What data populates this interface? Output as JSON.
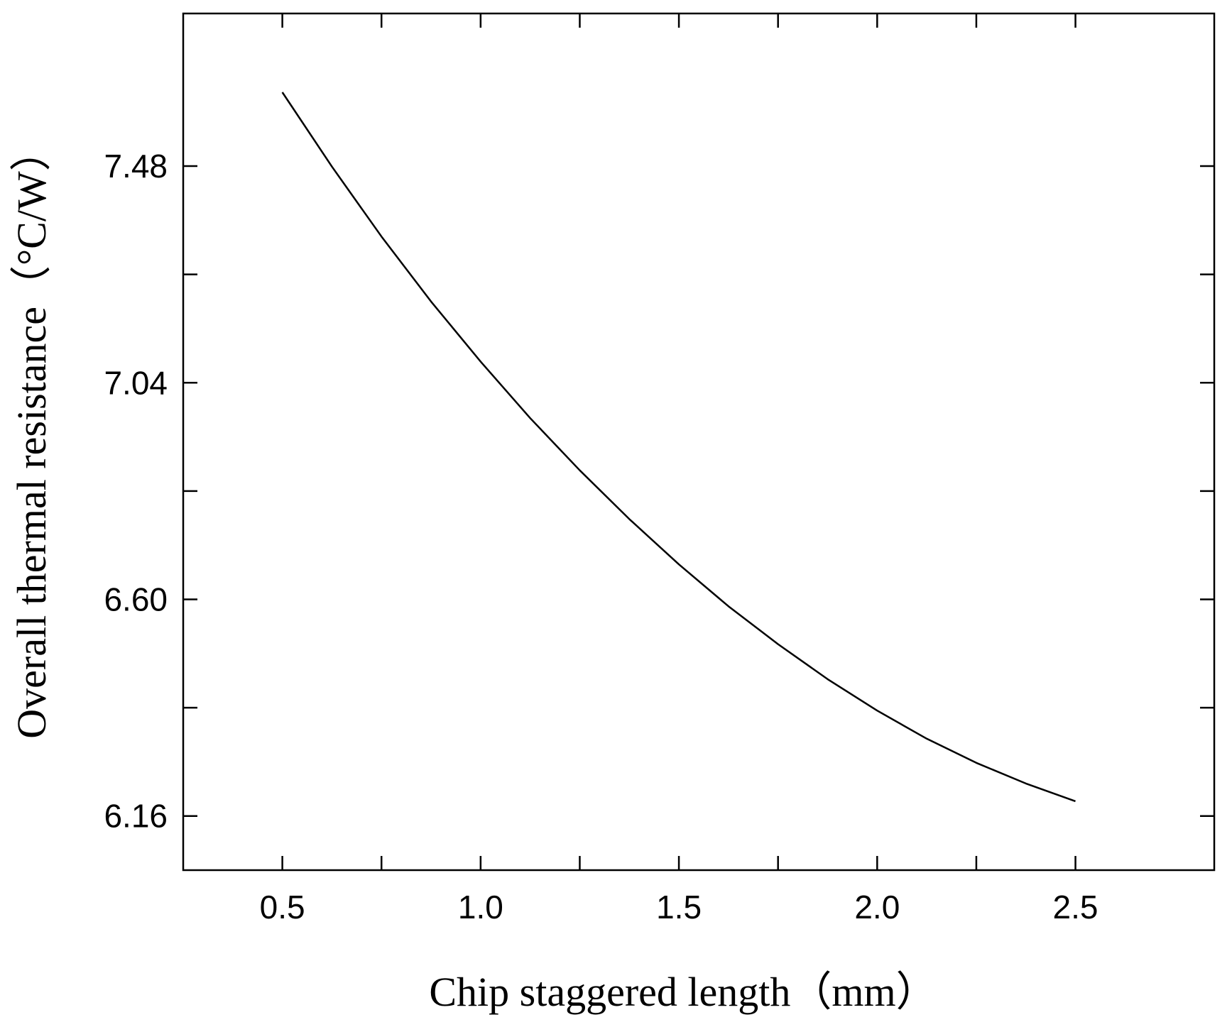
{
  "chart_data": {
    "type": "line",
    "title": "",
    "xlabel": "Chip staggered length（mm）",
    "ylabel": "Overall thermal resistance（°C/W）",
    "xlim": [
      0.25,
      2.85
    ],
    "ylim": [
      6.05,
      7.79
    ],
    "x_ticks": [
      0.5,
      1.0,
      1.5,
      2.0,
      2.5
    ],
    "x_tick_labels": [
      "0.5",
      "1.0",
      "1.5",
      "2.0",
      "2.5"
    ],
    "x_minor_ticks": [
      0.75,
      1.25,
      1.75,
      2.25
    ],
    "y_ticks": [
      6.16,
      6.6,
      7.04,
      7.48
    ],
    "y_tick_labels": [
      "6.16",
      "6.60",
      "7.04",
      "7.48"
    ],
    "y_minor_ticks": [
      6.38,
      6.82,
      7.26
    ],
    "grid": false,
    "legend": "none",
    "series": [
      {
        "color": "#000000",
        "x": [
          0.5,
          0.625,
          0.75,
          0.875,
          1.0,
          1.125,
          1.25,
          1.375,
          1.5,
          1.625,
          1.75,
          1.875,
          2.0,
          2.125,
          2.25,
          2.375,
          2.5
        ],
        "y": [
          7.63,
          7.479,
          7.337,
          7.205,
          7.083,
          6.968,
          6.862,
          6.763,
          6.671,
          6.586,
          6.509,
          6.438,
          6.374,
          6.317,
          6.268,
          6.226,
          6.19
        ]
      }
    ]
  }
}
